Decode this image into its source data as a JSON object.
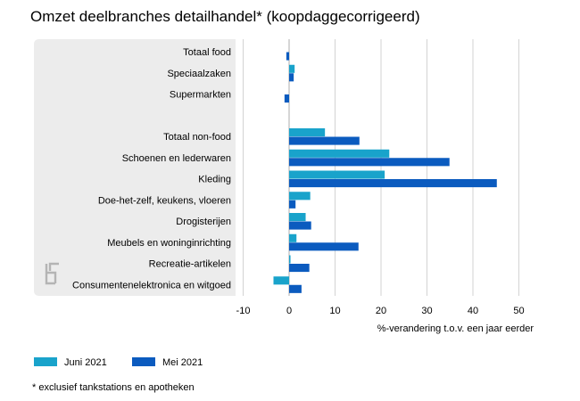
{
  "chart_data": {
    "type": "bar",
    "orientation": "horizontal",
    "title": "Omzet deelbranches detailhandel* (koopdaggecorrigeerd)",
    "xlabel": "%-verandering t.o.v. een jaar eerder",
    "ylabel": "",
    "xlim": [
      -10,
      50
    ],
    "xticks": [
      "-10",
      "0",
      "10",
      "20",
      "30",
      "40",
      "50"
    ],
    "grid": true,
    "legend_position": "bottom-left",
    "footnote": "* exclusief tankstations en apotheken",
    "categories": [
      "Totaal food",
      "Speciaalzaken",
      "Supermarkten",
      "",
      "Totaal non-food",
      "Schoenen en lederwaren",
      "Kleding",
      "Doe-het-zelf, keukens, vloeren",
      "Drogisterijen",
      "Meubels en woninginrichting",
      "Recreatie-artikelen",
      "Consumentenelektronica en witgoed"
    ],
    "series": [
      {
        "name": "Juni 2021",
        "color": "#19a3cb",
        "values": [
          null,
          1.2,
          null,
          null,
          7.8,
          21.8,
          20.8,
          4.6,
          3.6,
          1.6,
          0.3,
          -3.4
        ]
      },
      {
        "name": "Mei 2021",
        "color": "#0b5bbf",
        "values": [
          -0.6,
          1.0,
          -1.0,
          null,
          15.3,
          34.9,
          45.2,
          1.4,
          4.8,
          15.1,
          4.4,
          2.7
        ]
      }
    ]
  },
  "colors": {
    "panel_bg": "#ececec",
    "grid": "#c8c8c8",
    "logo": "#b4b4b4"
  },
  "icons": {
    "logo": "cbs-logo-icon"
  }
}
